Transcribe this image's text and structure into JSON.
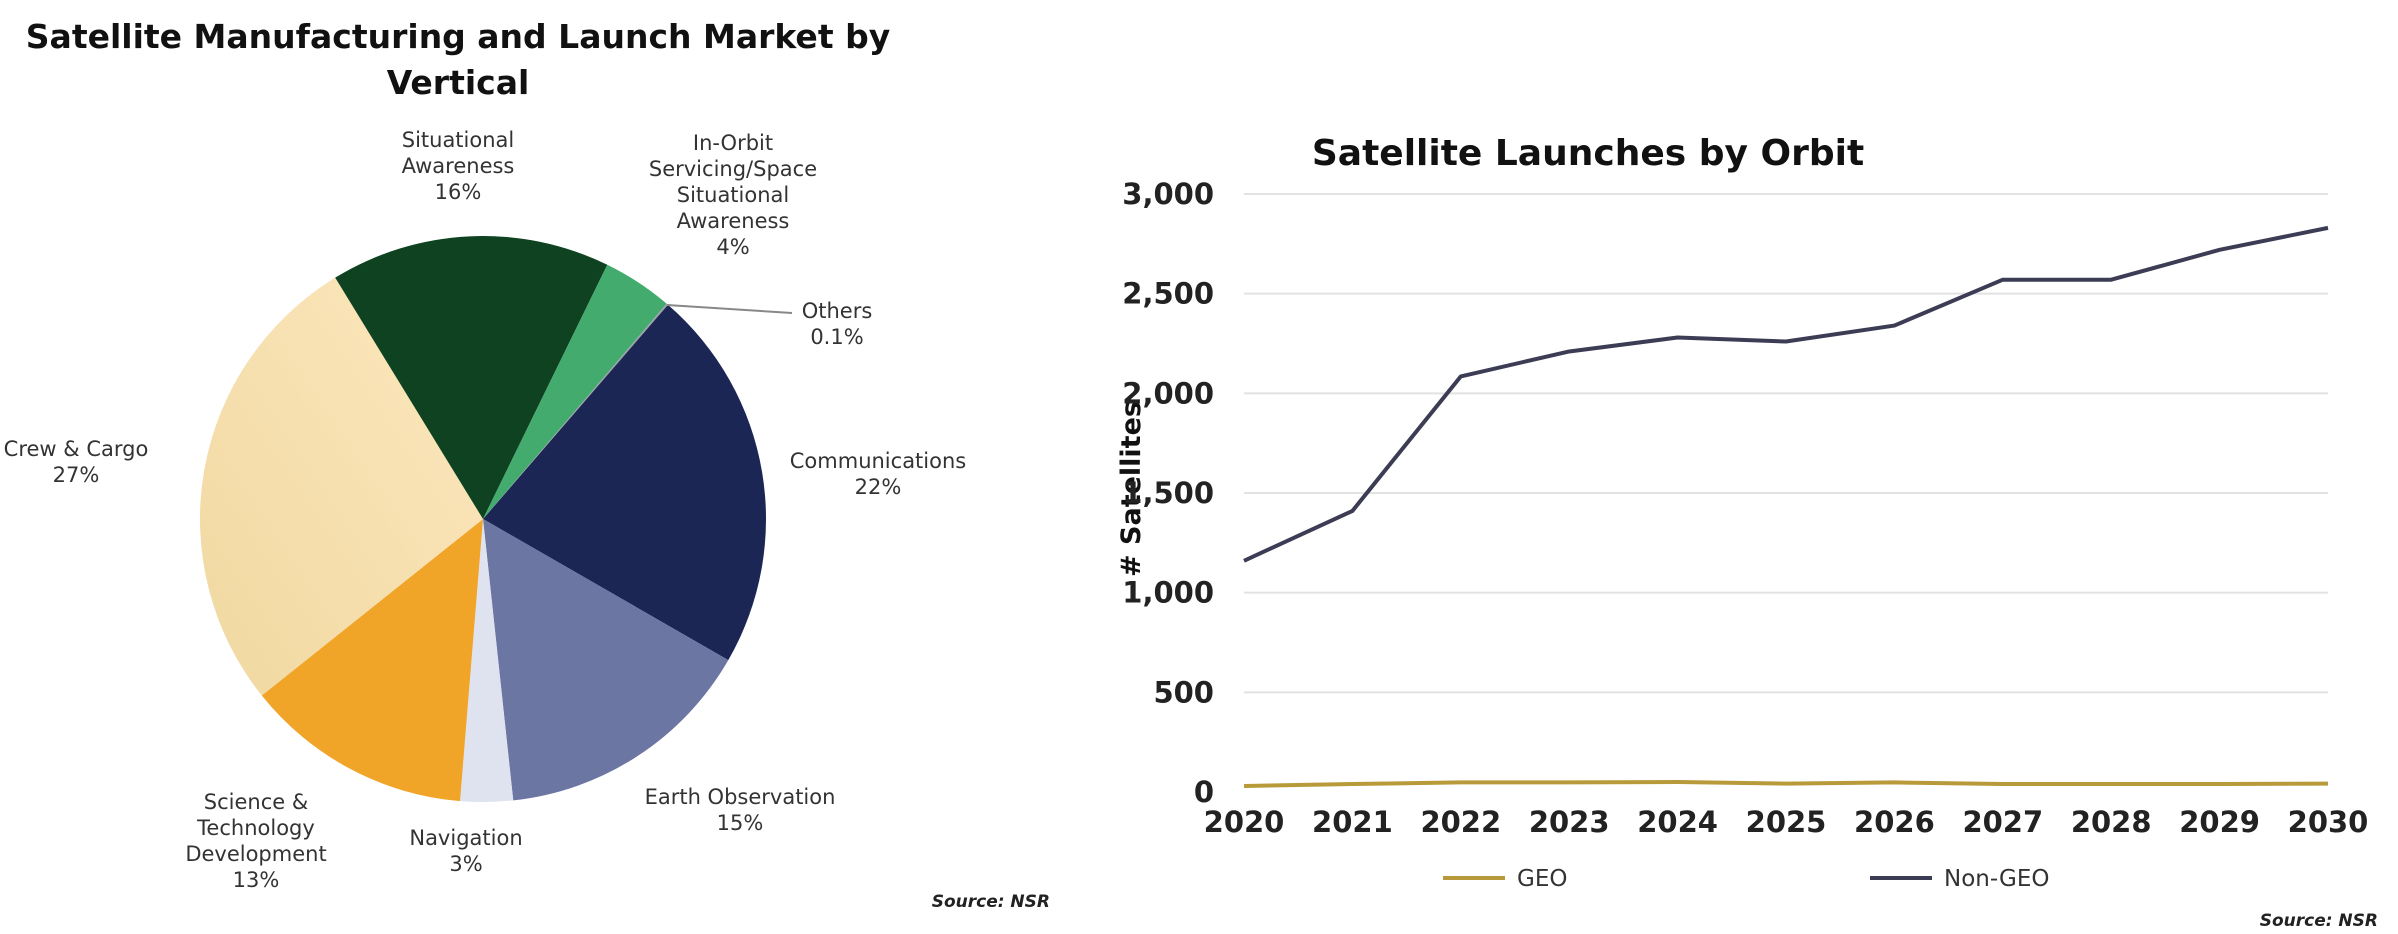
{
  "chart_data": [
    {
      "type": "pie",
      "title": "Satellite Manufacturing and Launch Market by Vertical",
      "title_lines": [
        "Satellite Manufacturing and Launch Market by",
        "Vertical"
      ],
      "source": "Source: NSR",
      "slices": [
        {
          "label": "Communications",
          "label_lines": [
            "Communications"
          ],
          "pct_text": "22%",
          "value": 22,
          "color": "#1c2655"
        },
        {
          "label": "Earth Observation",
          "label_lines": [
            "Earth Observation"
          ],
          "pct_text": "15%",
          "value": 15,
          "color": "#6b76a2"
        },
        {
          "label": "Navigation",
          "label_lines": [
            "Navigation"
          ],
          "pct_text": "3%",
          "value": 3,
          "color": "#dfe3f0"
        },
        {
          "label": "Science & Technology Development",
          "label_lines": [
            "Science &",
            "Technology",
            "Development"
          ],
          "pct_text": "13%",
          "value": 13,
          "color": "#f0a428"
        },
        {
          "label": "Crew & Cargo",
          "label_lines": [
            "Crew & Cargo"
          ],
          "pct_text": "27%",
          "value": 27,
          "color": "#f8e0b0"
        },
        {
          "label": "Situational Awareness",
          "label_lines": [
            "Situational",
            "Awareness"
          ],
          "pct_text": "16%",
          "value": 16,
          "color": "#0e4220"
        },
        {
          "label": "In-Orbit Servicing/Space Situational Awareness",
          "label_lines": [
            "In-Orbit",
            "Servicing/Space",
            "Situational",
            "Awareness"
          ],
          "pct_text": "4%",
          "value": 4,
          "color": "#43ab6e"
        },
        {
          "label": "Others",
          "label_lines": [
            "Others"
          ],
          "pct_text": "0.1%",
          "value": 0.1,
          "color": "#9aa0a6"
        }
      ]
    },
    {
      "type": "line",
      "title": "Satellite Launches by Orbit",
      "ylabel": "# Satellites",
      "xlabel": "",
      "source": "Source: NSR",
      "x": [
        2020,
        2021,
        2022,
        2023,
        2024,
        2025,
        2026,
        2027,
        2028,
        2029,
        2030
      ],
      "ylim": [
        0,
        3000
      ],
      "yticks": [
        0,
        500,
        1000,
        1500,
        2000,
        2500,
        3000
      ],
      "ytick_labels": [
        "0",
        "500",
        "1,000",
        "1,500",
        "2,000",
        "2,500",
        "3,000"
      ],
      "grid": true,
      "legend": "bottom",
      "series": [
        {
          "name": "GEO",
          "color": "#b89a3a",
          "values": [
            30,
            40,
            48,
            48,
            50,
            42,
            48,
            40,
            40,
            40,
            42
          ]
        },
        {
          "name": "Non-GEO",
          "color": "#3c3d55",
          "values": [
            1160,
            1410,
            2085,
            2210,
            2280,
            2260,
            2340,
            2570,
            2570,
            2720,
            2830
          ]
        }
      ]
    }
  ]
}
